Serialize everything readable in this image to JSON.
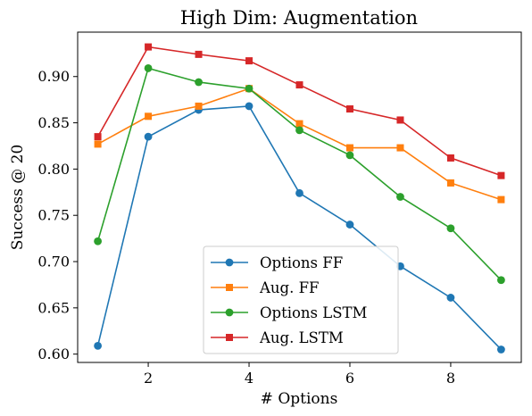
{
  "chart_data": {
    "type": "line",
    "title": "High Dim: Augmentation",
    "xlabel": "# Options",
    "ylabel": "Success @ 20",
    "x": [
      1,
      2,
      3,
      4,
      5,
      6,
      7,
      8,
      9
    ],
    "xlim": [
      0.6,
      9.4
    ],
    "ylim": [
      0.591,
      0.948
    ],
    "xticks": [
      2,
      4,
      6,
      8
    ],
    "xtick_labels": [
      "2",
      "4",
      "6",
      "8"
    ],
    "yticks": [
      0.6,
      0.65,
      0.7,
      0.75,
      0.8,
      0.85,
      0.9
    ],
    "ytick_labels": [
      "0.60",
      "0.65",
      "0.70",
      "0.75",
      "0.80",
      "0.85",
      "0.90"
    ],
    "grid": false,
    "legend_position": "lower-center",
    "series": [
      {
        "name": "Options FF",
        "color": "#1f77b4",
        "marker": "circle",
        "values": [
          0.609,
          0.835,
          0.864,
          0.868,
          0.774,
          0.74,
          0.695,
          0.661,
          0.605
        ]
      },
      {
        "name": "Aug. FF",
        "color": "#ff7f0e",
        "marker": "square",
        "values": [
          0.827,
          0.857,
          0.868,
          0.887,
          0.849,
          0.823,
          0.823,
          0.785,
          0.767
        ]
      },
      {
        "name": "Options LSTM",
        "color": "#2ca02c",
        "marker": "circle",
        "values": [
          0.722,
          0.909,
          0.894,
          0.887,
          0.842,
          0.815,
          0.77,
          0.736,
          0.68
        ]
      },
      {
        "name": "Aug. LSTM",
        "color": "#d62728",
        "marker": "square",
        "values": [
          0.835,
          0.932,
          0.924,
          0.917,
          0.891,
          0.865,
          0.853,
          0.812,
          0.793
        ]
      }
    ]
  }
}
